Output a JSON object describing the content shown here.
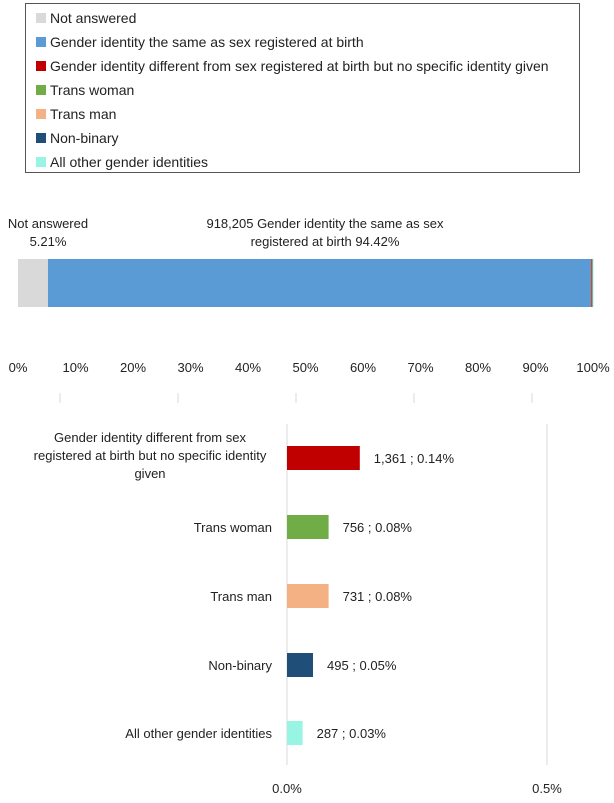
{
  "chart_data": [
    {
      "type": "bar",
      "orientation": "horizontal-stacked",
      "series": [
        {
          "name": "Not answered",
          "value_pct": 5.21,
          "color": "#d9d9d9",
          "label": "Not answered\n5.21%"
        },
        {
          "name": "Gender identity the same as sex registered at birth",
          "value_pct": 94.42,
          "count": 918205,
          "color": "#5b9bd5",
          "label": "918,205  Gender identity the same as sex\nregistered at birth 94.42%"
        },
        {
          "name": "Gender identity different from sex registered at birth but no specific identity given",
          "value_pct": 0.14,
          "color": "#c00000"
        },
        {
          "name": "Trans woman",
          "value_pct": 0.08,
          "color": "#70ad47"
        },
        {
          "name": "Trans man",
          "value_pct": 0.08,
          "color": "#f4b183"
        },
        {
          "name": "Non-binary",
          "value_pct": 0.05,
          "color": "#1f4e79"
        },
        {
          "name": "All other gender identities",
          "value_pct": 0.03,
          "color": "#99f5e3"
        }
      ],
      "xlim": [
        0,
        100
      ],
      "xticks": [
        "0%",
        "10%",
        "20%",
        "30%",
        "40%",
        "50%",
        "60%",
        "70%",
        "80%",
        "90%",
        "100%"
      ],
      "legend": "top"
    },
    {
      "type": "bar",
      "orientation": "horizontal",
      "categories": [
        "Gender identity different from sex registered at birth but no specific identity given",
        "Trans woman",
        "Trans man",
        "Non-binary",
        "All other gender identities"
      ],
      "category_label_lines": [
        [
          "Gender identity different from sex",
          "registered at birth but no specific identity",
          "given"
        ],
        [
          "Trans woman"
        ],
        [
          "Trans man"
        ],
        [
          "Non-binary"
        ],
        [
          "All other gender identities"
        ]
      ],
      "values_pct": [
        0.14,
        0.08,
        0.08,
        0.05,
        0.03
      ],
      "counts": [
        1361,
        756,
        731,
        495,
        287
      ],
      "data_labels": [
        "1,361 ; 0.14%",
        "756 ; 0.08%",
        "731 ; 0.08%",
        "495 ; 0.05%",
        "287 ; 0.03%"
      ],
      "colors": [
        "#c00000",
        "#70ad47",
        "#f4b183",
        "#1f4e79",
        "#99f5e3"
      ],
      "xlim": [
        0,
        0.5
      ],
      "xticks": [
        "0.0%",
        "0.5%"
      ],
      "grid": true
    }
  ]
}
